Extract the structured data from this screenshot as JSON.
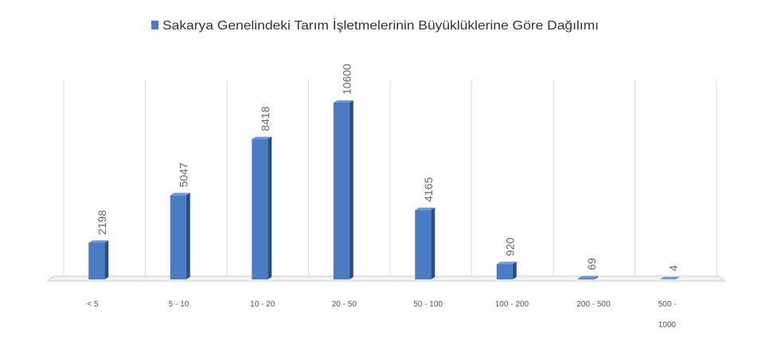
{
  "chart_data": {
    "type": "bar",
    "categories": [
      "< 5",
      "5 - 10",
      "10 - 20",
      "20 - 50",
      "50 - 100",
      "100 - 200",
      "200 - 500",
      "500 - 1000"
    ],
    "series": [
      {
        "name": "Sakarya Genelindeki Tarım İşletmelerinin Büyüklüklerine Göre Dağılımı",
        "color": "#4a7cc4",
        "values": [
          2198,
          5047,
          8418,
          10600,
          4165,
          920,
          69,
          4
        ]
      }
    ],
    "grid": true,
    "legend": "top"
  }
}
